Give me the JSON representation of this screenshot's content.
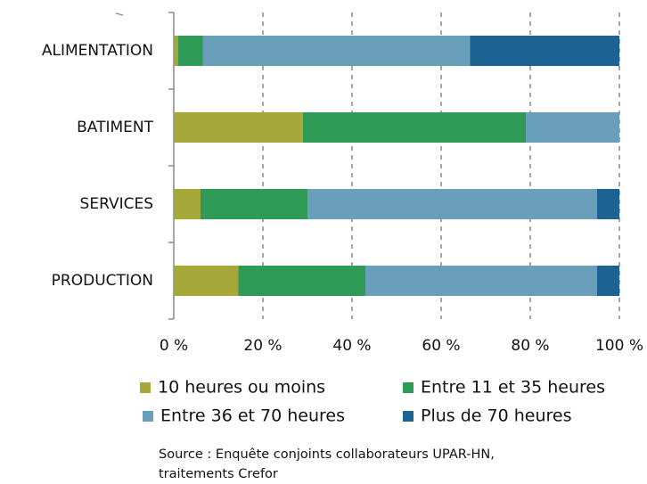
{
  "chart_data": {
    "type": "stacked_barh",
    "categories": [
      "ALIMENTATION",
      "BATIMENT",
      "SERVICES",
      "PRODUCTION"
    ],
    "series": [
      {
        "name": "10 heures ou moins",
        "color": "#a6a83a",
        "values": [
          1,
          29,
          6,
          14.5
        ]
      },
      {
        "name": "Entre 11 et 35 heures",
        "color": "#2f9a55",
        "values": [
          5.5,
          50,
          24,
          28.5
        ]
      },
      {
        "name": "Entre 36 et 70 heures",
        "color": "#6a9fba",
        "values": [
          60,
          21,
          65,
          52
        ]
      },
      {
        "name": "Plus de 70 heures",
        "color": "#1c6392",
        "values": [
          33.5,
          0,
          5,
          5
        ]
      }
    ],
    "xlim": [
      0,
      100
    ],
    "xticks": [
      {
        "value": 0,
        "label": "0 %"
      },
      {
        "value": 20,
        "label": "20 %"
      },
      {
        "value": 40,
        "label": "40 %"
      },
      {
        "value": 60,
        "label": "60 %"
      },
      {
        "value": 80,
        "label": "80 %"
      },
      {
        "value": 100,
        "label": "100 %"
      }
    ],
    "grid": true,
    "legend": "bottom",
    "source": [
      "Source : Enquête conjoints collaborateurs UPAR-HN,",
      "traitements Crefor"
    ]
  }
}
